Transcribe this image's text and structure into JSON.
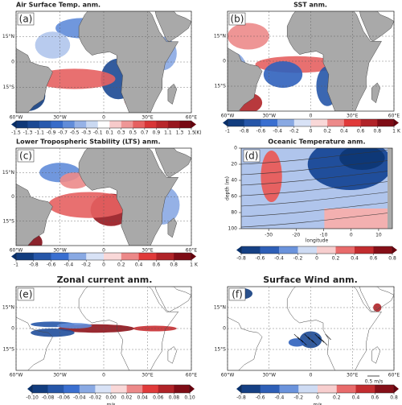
{
  "colormap": [
    "#08306b",
    "#3a6fd0",
    "#ffffff",
    "#e03a3a",
    "#67000d"
  ],
  "panels": [
    {
      "label": "(a)",
      "title": "Air Surface Temp. anm.",
      "lat_ticks": [
        {
          "value": 15,
          "label": "15°N"
        },
        0,
        {
          "value": -15,
          "label": "15°S"
        }
      ],
      "lon_ticks": [
        {
          "value": -60,
          "label": "60°W"
        },
        {
          "value": -30,
          "label": "30°W"
        },
        0,
        {
          "value": 30,
          "label": "30°E"
        },
        {
          "value": 60,
          "label": "60°E"
        }
      ],
      "colorbar": {
        "lim": [
          -1.5,
          1.5
        ],
        "ticks": [
          -1.5,
          -1.3,
          -1.1,
          -0.9,
          -0.7,
          -0.5,
          -0.3,
          -0.1,
          0.1,
          0.3,
          0.5,
          0.7,
          0.9,
          1.1,
          1.3,
          1.5
        ],
        "unit": "(K)"
      }
    },
    {
      "label": "(b)",
      "title": "SST anm.",
      "lat_ticks": [
        {
          "value": 15,
          "label": "15°N"
        },
        0,
        {
          "value": -15,
          "label": "15°S"
        }
      ],
      "lon_ticks": [
        {
          "value": -60,
          "label": "60°W"
        },
        {
          "value": -30,
          "label": "30°W"
        },
        0,
        {
          "value": 30,
          "label": "30°E"
        },
        {
          "value": 60,
          "label": "60°E"
        }
      ],
      "colorbar": {
        "lim": [
          -1,
          1
        ],
        "ticks": [
          -1,
          -0.8,
          -0.6,
          -0.4,
          -0.2,
          0,
          0.2,
          0.4,
          0.6,
          0.8,
          1
        ],
        "unit": "K"
      }
    },
    {
      "label": "(c)",
      "title": "Lower Tropospheric Stability (LTS) anm.",
      "lat_ticks": [
        {
          "value": 15,
          "label": "15°N"
        },
        0,
        {
          "value": -15,
          "label": "15°S"
        }
      ],
      "lon_ticks": [
        {
          "value": -60,
          "label": "60°W"
        },
        {
          "value": -30,
          "label": "30°W"
        },
        0,
        {
          "value": 30,
          "label": "30°E"
        },
        {
          "value": 60,
          "label": "60°E"
        }
      ],
      "colorbar": {
        "lim": [
          -1,
          1
        ],
        "ticks": [
          -1,
          -0.8,
          -0.6,
          -0.4,
          -0.2,
          0,
          0.2,
          0.4,
          0.6,
          0.8,
          1
        ],
        "unit": "K"
      }
    },
    {
      "label": "(d)",
      "title": "Oceanic Temperature anm.",
      "ylabel": "depth (m)",
      "xlabel": "longitude",
      "xlim": [
        -40,
        15
      ],
      "ylim": [
        0,
        100
      ],
      "xticks": [
        -30,
        -20,
        -10,
        0,
        10
      ],
      "yticks": [
        0,
        20,
        40,
        60,
        80,
        100
      ],
      "colorbar": {
        "lim": [
          -0.8,
          0.8
        ],
        "ticks": [
          -0.8,
          -0.6,
          -0.4,
          -0.2,
          0,
          0.2,
          0.4,
          0.6,
          0.8
        ]
      }
    },
    {
      "label": "(e)",
      "title": "Zonal current anm.",
      "lat_ticks": [
        {
          "value": 15,
          "label": "15°N"
        },
        0,
        {
          "value": -15,
          "label": "15°S"
        }
      ],
      "lon_ticks": [
        {
          "value": -60,
          "label": "60°W"
        },
        {
          "value": -30,
          "label": "30°W"
        },
        0,
        {
          "value": 30,
          "label": "30°E"
        },
        {
          "value": 60,
          "label": "60°E"
        }
      ],
      "colorbar": {
        "lim": [
          -0.1,
          0.1
        ],
        "ticks": [
          {
            "value": -0.1,
            "label": "-0.10"
          },
          {
            "value": -0.08,
            "label": "-0.08"
          },
          {
            "value": -0.06,
            "label": "-0.06"
          },
          {
            "value": -0.04,
            "label": "-0.04"
          },
          {
            "value": -0.02,
            "label": "-0.02"
          },
          {
            "value": 0,
            "label": "0.00"
          },
          {
            "value": 0.02,
            "label": "0.02"
          },
          {
            "value": 0.04,
            "label": "0.04"
          },
          {
            "value": 0.06,
            "label": "0.06"
          },
          {
            "value": 0.08,
            "label": "0.08"
          },
          {
            "value": 0.1,
            "label": "0.10"
          }
        ],
        "unit": "m/s"
      }
    },
    {
      "label": "(f)",
      "title": "Surface Wind anm.",
      "annotation": "0.5 m/s",
      "lat_ticks": [
        {
          "value": 15,
          "label": "15°N"
        },
        0,
        {
          "value": -15,
          "label": "15°S"
        }
      ],
      "lon_ticks": [
        {
          "value": -60,
          "label": "60°W"
        },
        {
          "value": -30,
          "label": "30°W"
        },
        0,
        {
          "value": 30,
          "label": "30°E"
        },
        {
          "value": 60,
          "label": "60°E"
        }
      ],
      "colorbar": {
        "lim": [
          -0.8,
          0.8
        ],
        "ticks": [
          -0.8,
          -0.6,
          -0.4,
          -0.2,
          0,
          0.2,
          0.4,
          0.6,
          0.8
        ],
        "unit": "m/s"
      }
    }
  ]
}
